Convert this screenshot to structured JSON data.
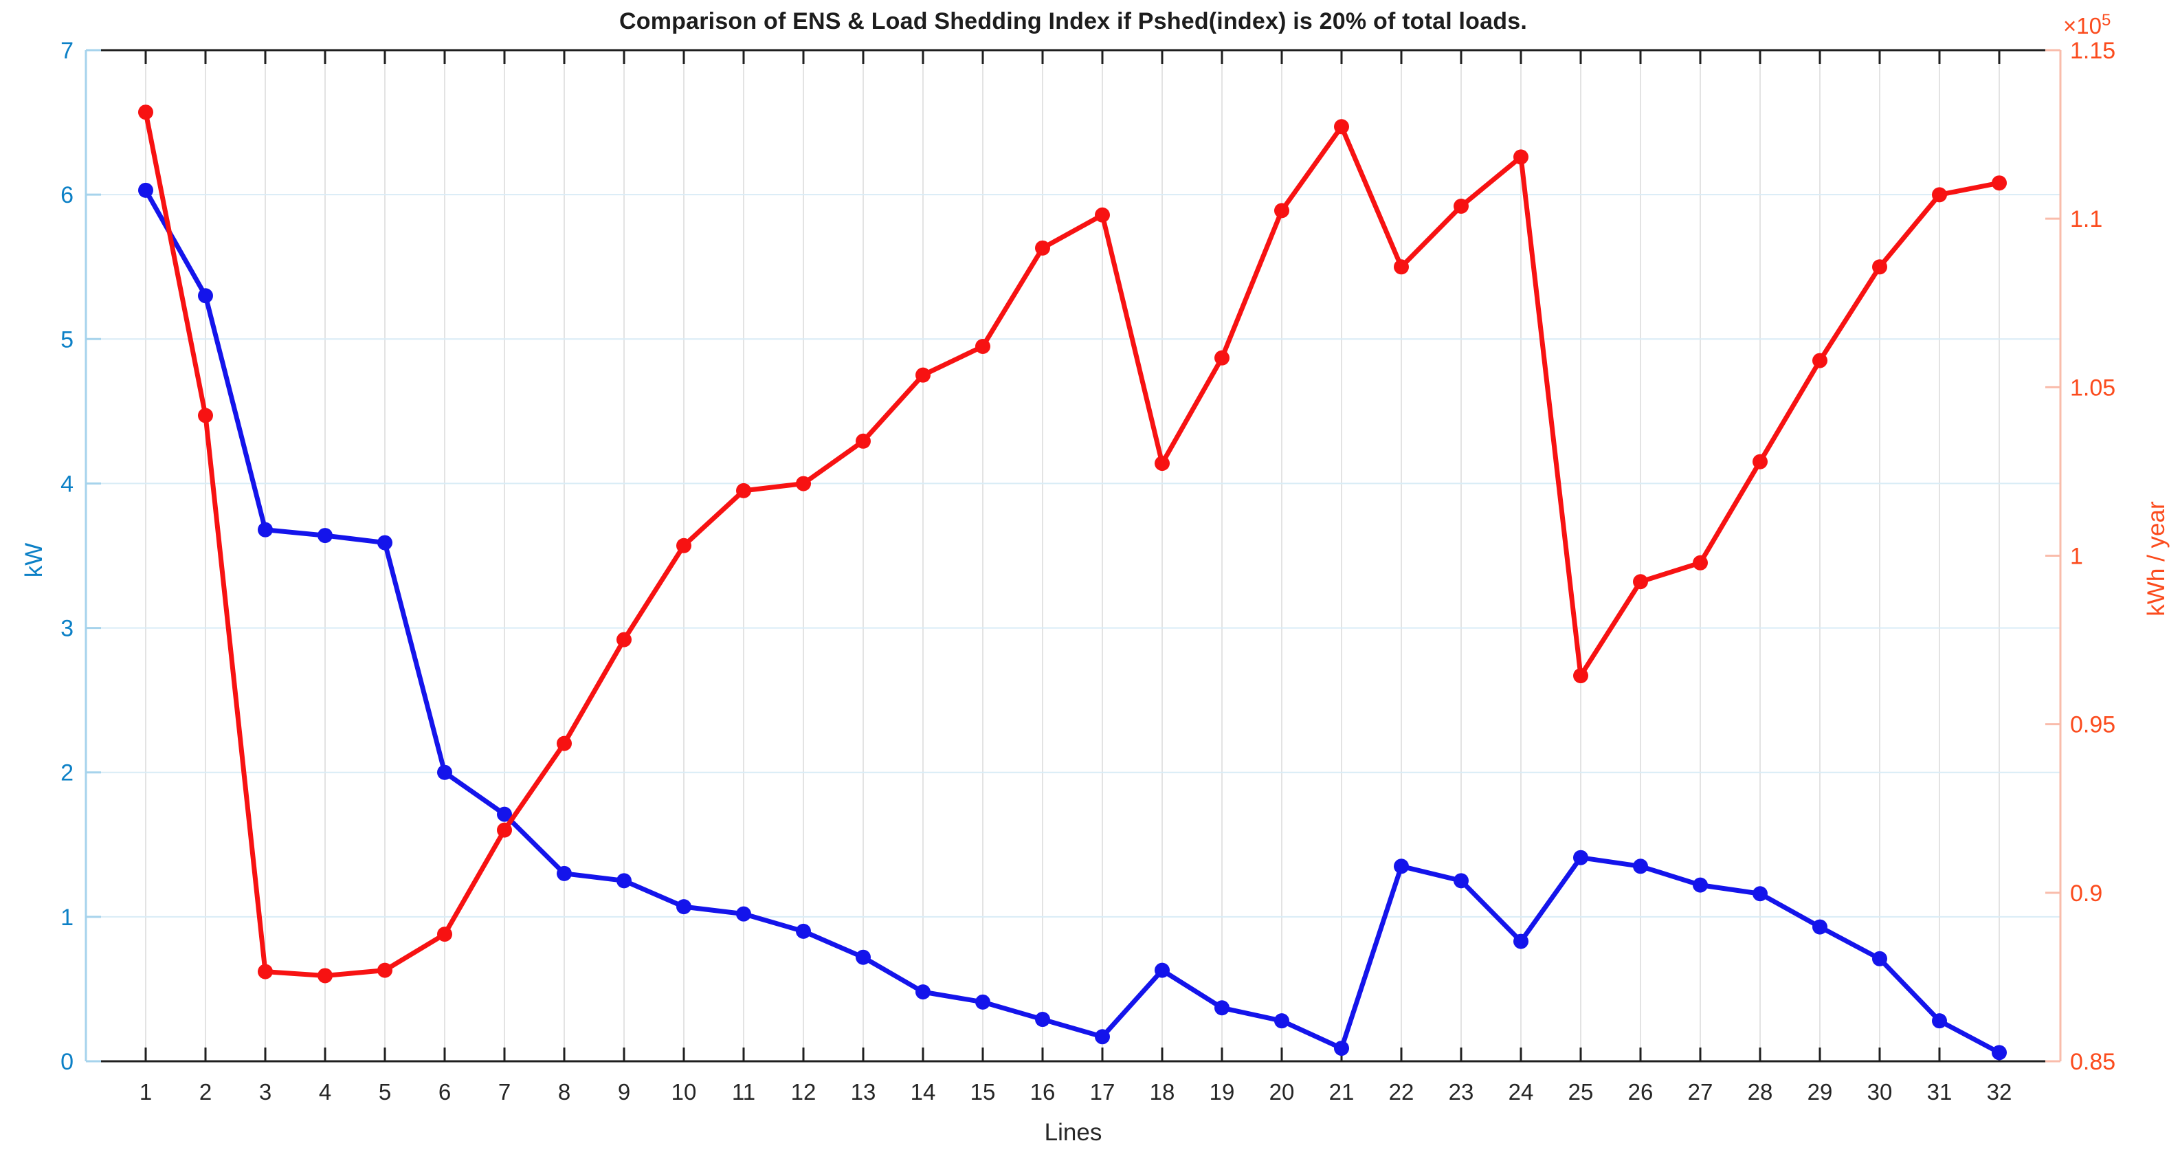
{
  "page": {
    "background": "#ffffff"
  },
  "chart_data": {
    "type": "line",
    "title": "Comparison of ENS & Load Shedding Index if Pshed(index) is 20% of total loads.",
    "xlabel": "Lines",
    "grid": true,
    "legend": "none",
    "x": [
      1,
      2,
      3,
      4,
      5,
      6,
      7,
      8,
      9,
      10,
      11,
      12,
      13,
      14,
      15,
      16,
      17,
      18,
      19,
      20,
      21,
      22,
      23,
      24,
      25,
      26,
      27,
      28,
      29,
      30,
      31,
      32
    ],
    "x_axis": {
      "label": "Lines",
      "tick_label_color": "#262626",
      "grid_color": "#e3e3e3",
      "border_color": "#1f1f1f"
    },
    "left_axis": {
      "label": "kW",
      "min": 0,
      "max": 7,
      "tick_values": [
        0,
        1,
        2,
        3,
        4,
        5,
        6,
        7
      ],
      "tick_labels": [
        "0",
        "1",
        "2",
        "3",
        "4",
        "5",
        "6",
        "7"
      ],
      "tick_label_color": "#0c80c6",
      "axis_line_color": "#a6d3ec",
      "grid_color": "#d9ecf6"
    },
    "right_axis": {
      "label": "kWh / year",
      "min": 0.85,
      "max": 1.15,
      "tick_values": [
        0.85,
        0.9,
        0.95,
        1,
        1.05,
        1.1,
        1.15
      ],
      "tick_labels": [
        "0.85",
        "0.9",
        "0.95",
        "1",
        "1.05",
        "1.1",
        "1.15"
      ],
      "multiplier_base": "×10",
      "multiplier_exponent": "5",
      "tick_label_color": "#fb4b1d",
      "axis_line_color": "#f9bcab"
    },
    "series": [
      {
        "name": "kW (blue line, left axis)",
        "axis": "left",
        "color": "#1414eb",
        "marker": "filled-circle",
        "values": [
          6.03,
          5.3,
          3.68,
          3.64,
          3.59,
          2.0,
          1.71,
          1.3,
          1.25,
          1.07,
          1.02,
          0.9,
          0.72,
          0.48,
          0.41,
          0.29,
          0.17,
          0.63,
          0.37,
          0.28,
          0.09,
          1.35,
          1.25,
          0.83,
          1.41,
          1.35,
          1.22,
          1.16,
          0.93,
          0.71,
          0.28,
          0.06
        ]
      },
      {
        "name": "kWh / year ×10^5 (red line, right axis)",
        "axis": "right",
        "color": "#f71212",
        "marker": "filled-circle",
        "values": [
          1.1316,
          1.0416,
          0.8766,
          0.8754,
          0.877,
          0.8877,
          0.9186,
          0.9443,
          0.9751,
          1.003,
          1.0193,
          1.0214,
          1.034,
          1.0536,
          1.0621,
          1.0913,
          1.1011,
          1.0274,
          1.0587,
          1.1024,
          1.1273,
          1.0857,
          1.1037,
          1.1183,
          0.9644,
          0.9923,
          0.9979,
          1.0279,
          1.0579,
          1.0857,
          1.1071,
          1.1106
        ]
      }
    ]
  }
}
